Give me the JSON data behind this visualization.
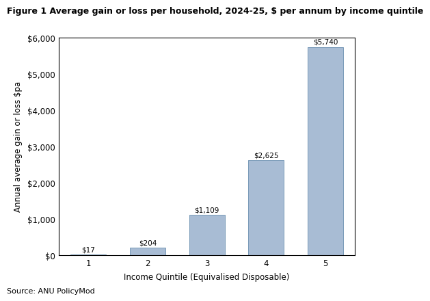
{
  "title": "Figure 1 Average gain or loss per household, 2024-25, $ per annum by income quintile",
  "categories": [
    1,
    2,
    3,
    4,
    5
  ],
  "values": [
    17,
    204,
    1109,
    2625,
    5740
  ],
  "bar_color": "#a8bcd4",
  "bar_edgecolor": "#7a9ab8",
  "xlabel": "Income Quintile (Equivalised Disposable)",
  "ylabel": "Annual average gain or loss $pa",
  "ylim": [
    0,
    6000
  ],
  "yticks": [
    0,
    1000,
    2000,
    3000,
    4000,
    5000,
    6000
  ],
  "ytick_labels": [
    "$0",
    "$1,000",
    "$2,000",
    "$3,000",
    "$4,000",
    "$5,000",
    "$6,000"
  ],
  "source": "Source: ANU PolicyMod",
  "bar_labels": [
    "$17",
    "$204",
    "$1,109",
    "$2,625",
    "$5,740"
  ],
  "background_color": "#ffffff",
  "title_fontsize": 9,
  "axis_fontsize": 8.5,
  "label_fontsize": 7.5,
  "source_fontsize": 8
}
